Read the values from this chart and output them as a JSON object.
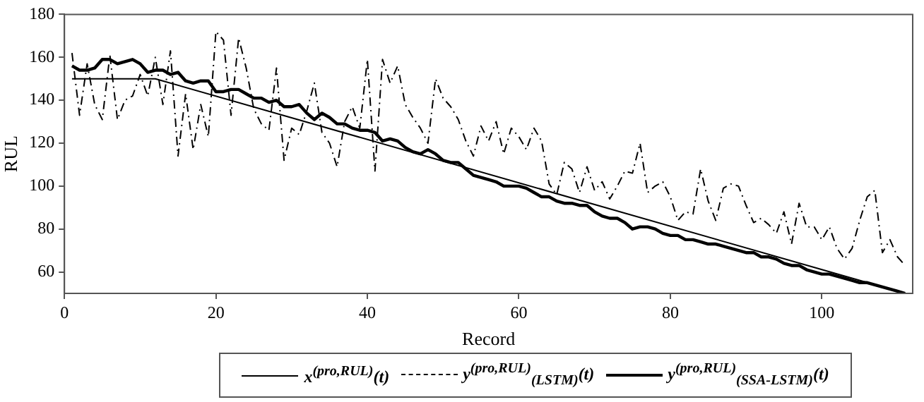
{
  "chart_data": {
    "type": "line",
    "xlabel": "Record",
    "ylabel": "RUL",
    "xlim": [
      0,
      112
    ],
    "ylim": [
      50,
      180
    ],
    "xticks": [
      0,
      20,
      40,
      60,
      80,
      100
    ],
    "yticks": [
      60,
      80,
      100,
      120,
      140,
      160,
      180
    ],
    "legend": "bottom",
    "x": [
      1,
      2,
      3,
      4,
      5,
      6,
      7,
      8,
      9,
      10,
      11,
      12,
      13,
      14,
      15,
      16,
      17,
      18,
      19,
      20,
      21,
      22,
      23,
      24,
      25,
      26,
      27,
      28,
      29,
      30,
      31,
      32,
      33,
      34,
      35,
      36,
      37,
      38,
      39,
      40,
      41,
      42,
      43,
      44,
      45,
      46,
      47,
      48,
      49,
      50,
      51,
      52,
      53,
      54,
      55,
      56,
      57,
      58,
      59,
      60,
      61,
      62,
      63,
      64,
      65,
      66,
      67,
      68,
      69,
      70,
      71,
      72,
      73,
      74,
      75,
      76,
      77,
      78,
      79,
      80,
      81,
      82,
      83,
      84,
      85,
      86,
      87,
      88,
      89,
      90,
      91,
      92,
      93,
      94,
      95,
      96,
      97,
      98,
      99,
      100,
      101,
      102,
      103,
      104,
      105,
      106,
      107,
      108,
      109,
      110,
      111
    ],
    "series": [
      {
        "name": "x$^{(pro,RUL)}$(t)",
        "color": "#000000",
        "line_style": "solid",
        "x": [
          1,
          12,
          111
        ],
        "values": [
          150,
          150,
          50
        ]
      },
      {
        "name": "y$^{(pro,RUL)}$$_{(LSTM)}$(t)",
        "color": "#000000",
        "line_style": "dashed",
        "values": [
          162,
          133,
          157,
          138,
          131,
          161,
          131,
          140,
          142,
          152,
          142,
          160,
          138,
          163,
          114,
          143,
          117,
          138,
          123,
          172,
          168,
          133,
          169,
          155,
          136,
          129,
          126,
          155,
          112,
          127,
          124,
          135,
          148,
          125,
          120,
          109,
          130,
          137,
          127,
          159,
          107,
          159,
          148,
          156,
          138,
          132,
          127,
          120,
          150,
          141,
          137,
          131,
          121,
          114,
          128,
          121,
          130,
          115,
          127,
          123,
          117,
          127,
          121,
          101,
          96,
          111,
          108,
          97,
          109,
          98,
          102,
          94,
          100,
          107,
          106,
          120,
          97,
          100,
          102,
          95,
          84,
          88,
          87,
          108,
          93,
          84,
          99,
          101,
          100,
          91,
          83,
          85,
          82,
          78,
          88,
          73,
          92,
          81,
          81,
          75,
          81,
          71,
          66,
          71,
          84,
          95,
          98,
          69,
          75,
          67,
          63
        ]
      },
      {
        "name": "y$^{(pro,RUL)}$$_{(SSA-LSTM)}$(t)",
        "color": "#000000",
        "line_style": "solid",
        "values": [
          156,
          154,
          154,
          155,
          159,
          159,
          157,
          158,
          159,
          157,
          153,
          154,
          154,
          152,
          153,
          149,
          148,
          149,
          149,
          144,
          144,
          145,
          145,
          143,
          141,
          141,
          139,
          140,
          137,
          137,
          138,
          134,
          131,
          134,
          132,
          129,
          129,
          127,
          126,
          126,
          125,
          121,
          122,
          121,
          118,
          116,
          115,
          117,
          115,
          112,
          111,
          111,
          108,
          105,
          104,
          103,
          102,
          100,
          100,
          100,
          99,
          97,
          95,
          95,
          93,
          92,
          92,
          91,
          91,
          88,
          86,
          85,
          85,
          83,
          80,
          81,
          81,
          80,
          78,
          77,
          77,
          75,
          75,
          74,
          73,
          73,
          72,
          71,
          70,
          69,
          69,
          67,
          67,
          66,
          64,
          63,
          63,
          61,
          60,
          59,
          59,
          58,
          57,
          56,
          55,
          55,
          54,
          53,
          52,
          51,
          50
        ]
      }
    ]
  }
}
